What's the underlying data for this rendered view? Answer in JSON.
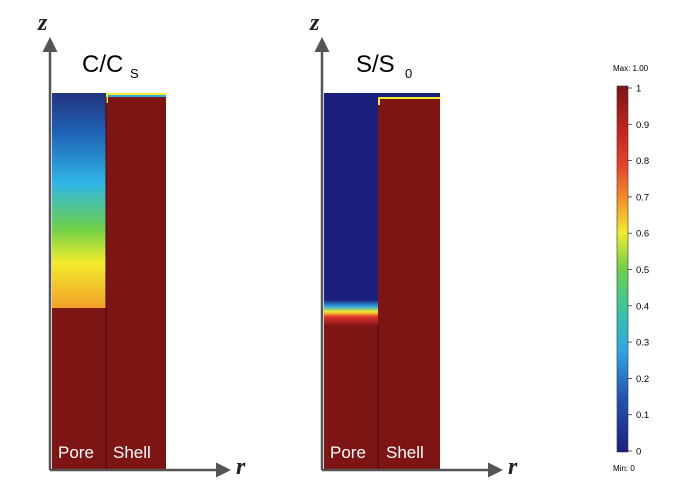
{
  "panels": [
    {
      "title_main": "C/C",
      "title_sub": "S",
      "region_labels": [
        "Pore",
        "Shell"
      ],
      "axis_z": "z",
      "axis_r": "r"
    },
    {
      "title_main": "S/S",
      "title_sub": "0",
      "region_labels": [
        "Pore",
        "Shell"
      ],
      "axis_z": "z",
      "axis_r": "r"
    }
  ],
  "colorbar": {
    "max_label": "Max: 1.00",
    "min_label": "Min: 0",
    "ticks": [
      "1",
      "0.9",
      "0.8",
      "0.7",
      "0.6",
      "0.5",
      "0.4",
      "0.3",
      "0.2",
      "0.1",
      "0"
    ]
  },
  "colors": {
    "colormap_0": "#1b1f7e",
    "colormap_0.3": "#2fb6e6",
    "colormap_0.5": "#6fd04a",
    "colormap_0.6": "#f2ec2c",
    "colormap_0.8": "#e1322d",
    "colormap_1": "#7d1515"
  }
}
